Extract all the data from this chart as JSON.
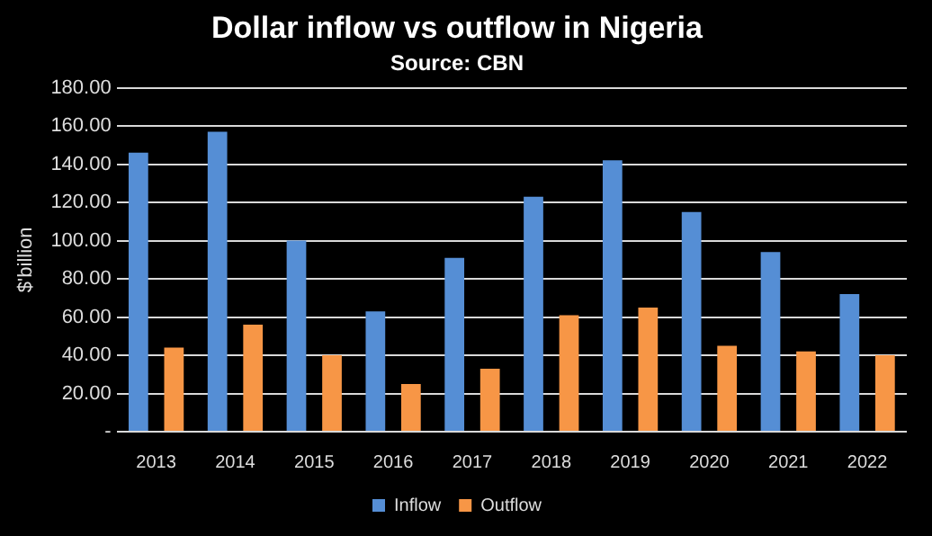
{
  "chart_data": {
    "type": "bar",
    "title": "Dollar inflow vs outflow in Nigeria",
    "subtitle": "Source: CBN",
    "ylabel": "$'billion",
    "categories": [
      "2013",
      "2014",
      "2015",
      "2016",
      "2017",
      "2018",
      "2019",
      "2020",
      "2021",
      "2022"
    ],
    "series": [
      {
        "name": "Inflow",
        "color": "#558ed5",
        "values": [
          146,
          157,
          100,
          63,
          91,
          123,
          142,
          115,
          94,
          72
        ]
      },
      {
        "name": "Outflow",
        "color": "#f79646",
        "values": [
          44,
          56,
          40,
          25,
          33,
          61,
          65,
          45,
          42,
          40
        ]
      }
    ],
    "ylim": [
      0,
      180
    ],
    "yticks": [
      {
        "value": 0,
        "label": "-"
      },
      {
        "value": 20,
        "label": "20.00"
      },
      {
        "value": 40,
        "label": "40.00"
      },
      {
        "value": 60,
        "label": "60.00"
      },
      {
        "value": 80,
        "label": "80.00"
      },
      {
        "value": 100,
        "label": "100.00"
      },
      {
        "value": 120,
        "label": "120.00"
      },
      {
        "value": 140,
        "label": "140.00"
      },
      {
        "value": 160,
        "label": "160.00"
      },
      {
        "value": 180,
        "label": "180.00"
      }
    ],
    "grid": "y",
    "legend": "bottom"
  }
}
